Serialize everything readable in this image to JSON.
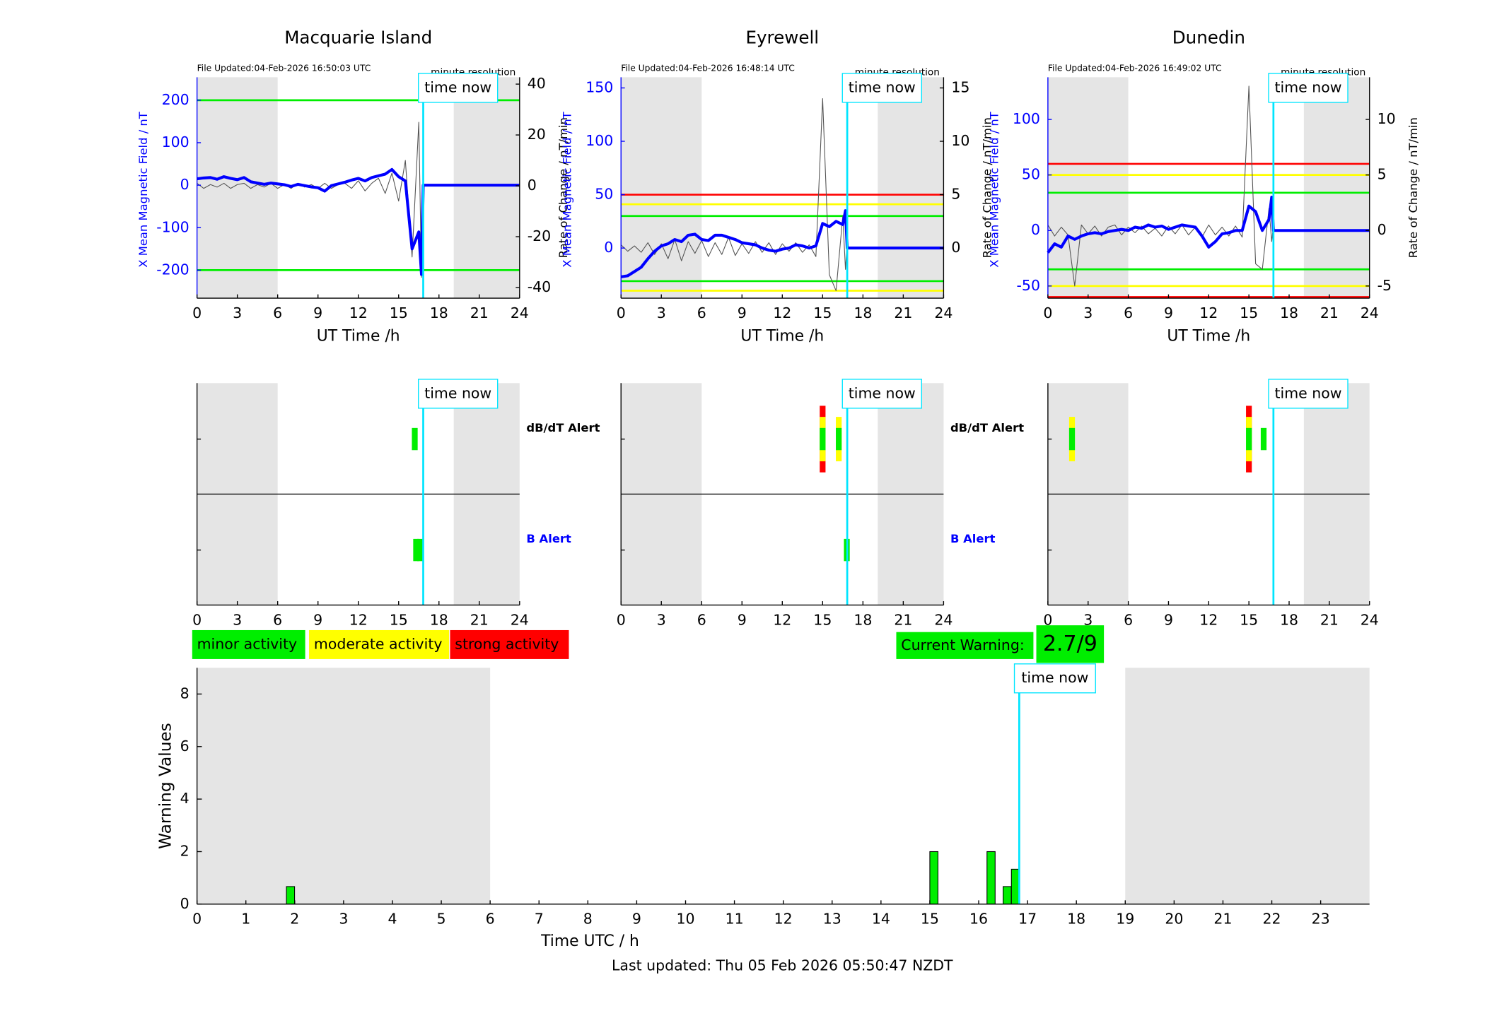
{
  "chart_data": [
    {
      "type": "mag",
      "title": "Macquarie Island",
      "file_updated": "File Updated:04-Feb-2026 16:50:03 UTC",
      "resolution": "minute resolution",
      "xlabel": "UT Time /h",
      "xlim": [
        0,
        24
      ],
      "xticks": [
        0,
        3,
        6,
        9,
        12,
        15,
        18,
        21,
        24
      ],
      "ylim": [
        -266,
        254
      ],
      "yticks": [
        -200,
        -100,
        0,
        100,
        200
      ],
      "y2lim": [
        -44.2,
        42.7
      ],
      "y2ticks": [
        -40,
        -20,
        0,
        20,
        40
      ],
      "shaded": [
        [
          0,
          6
        ],
        [
          19.1,
          24
        ]
      ],
      "time_now": 16.83,
      "time_now_label": "time now",
      "thresholds": [
        {
          "value": 200,
          "color": "#00ee00"
        },
        {
          "value": -200,
          "color": "#00ee00"
        }
      ],
      "x": [
        0,
        0.5,
        1,
        1.5,
        2,
        2.5,
        3,
        3.5,
        4,
        4.5,
        5,
        5.5,
        6,
        6.5,
        7,
        7.5,
        8,
        8.5,
        9,
        9.5,
        10,
        10.5,
        11,
        11.5,
        12,
        12.5,
        13,
        13.5,
        14,
        14.5,
        15,
        15.5,
        16,
        16.5,
        16.7,
        16.83,
        24
      ],
      "series": [
        {
          "name": "X Mean Magnetic Field / nT",
          "color": "#0000ff",
          "values": [
            15,
            17,
            18,
            14,
            20,
            16,
            13,
            18,
            8,
            5,
            2,
            5,
            3,
            1,
            -3,
            2,
            -1,
            -4,
            -6,
            -14,
            -1,
            3,
            7,
            12,
            16,
            10,
            18,
            22,
            26,
            37,
            20,
            10,
            -150,
            -110,
            -210,
            0,
            0
          ]
        },
        {
          "name": "Rate of Change / nT/min",
          "color": "#555555",
          "axis": "y2",
          "values": [
            1,
            -1,
            0.5,
            -0.5,
            1,
            -1,
            0.5,
            1,
            -1,
            0.5,
            -0.5,
            1,
            -1,
            0.5,
            -1,
            1,
            -0.5,
            0.5,
            -1,
            1,
            -1,
            0.5,
            1,
            -1,
            2,
            -2,
            1,
            3,
            -3,
            5,
            -6,
            10,
            -28,
            25,
            -36,
            6,
            null
          ]
        }
      ]
    },
    {
      "type": "mag",
      "title": "Eyrewell",
      "file_updated": "File Updated:04-Feb-2026 16:48:14 UTC",
      "resolution": "minute resolution",
      "xlabel": "UT Time /h",
      "xlim": [
        0,
        24
      ],
      "xticks": [
        0,
        3,
        6,
        9,
        12,
        15,
        18,
        21,
        24
      ],
      "ylim": [
        -47,
        160
      ],
      "yticks": [
        0,
        50,
        100,
        150
      ],
      "y2lim": [
        -4.7,
        16
      ],
      "y2ticks": [
        0,
        5,
        10,
        15
      ],
      "shaded": [
        [
          0,
          6
        ],
        [
          19.1,
          24
        ]
      ],
      "time_now": 16.83,
      "time_now_label": "time now",
      "thresholds": [
        {
          "value": 50,
          "color": "#ff0000"
        },
        {
          "value": 41,
          "color": "#ffff00"
        },
        {
          "value": 30,
          "color": "#00ee00"
        },
        {
          "value": -31,
          "color": "#00ee00"
        },
        {
          "value": -40,
          "color": "#ffff00"
        }
      ],
      "x": [
        0,
        0.5,
        1,
        1.5,
        2,
        2.5,
        3,
        3.5,
        4,
        4.5,
        5,
        5.5,
        6,
        6.5,
        7,
        7.5,
        8,
        8.5,
        9,
        9.5,
        10,
        10.5,
        11,
        11.5,
        12,
        12.5,
        13,
        13.5,
        14,
        14.5,
        15,
        15.5,
        16,
        16.5,
        16.7,
        16.83,
        24
      ],
      "series": [
        {
          "name": "X Mean Magnetic Field / nT",
          "color": "#0000ff",
          "values": [
            -27,
            -26,
            -22,
            -18,
            -10,
            -3,
            2,
            4,
            8,
            6,
            12,
            13,
            8,
            7,
            12,
            12,
            10,
            8,
            5,
            4,
            3,
            0,
            -2,
            -3,
            -1,
            0,
            3,
            2,
            0,
            2,
            23,
            20,
            25,
            22,
            35,
            0,
            0
          ]
        },
        {
          "name": "Rate of Change / nT/min",
          "color": "#555555",
          "axis": "y2",
          "values": [
            0.3,
            -0.3,
            0.2,
            -0.4,
            0.5,
            -0.6,
            0.4,
            -1,
            0.8,
            -1.2,
            0.6,
            -0.5,
            0.7,
            -0.8,
            0.5,
            -0.6,
            1,
            -0.7,
            0.4,
            -0.5,
            0.6,
            -0.4,
            0.5,
            -0.6,
            0.4,
            -0.3,
            0.5,
            -0.4,
            0.3,
            -0.8,
            14,
            -2.5,
            -4,
            3,
            -2,
            0.5,
            null
          ]
        }
      ]
    },
    {
      "type": "mag",
      "title": "Dunedin",
      "file_updated": "File Updated:04-Feb-2026 16:49:02 UTC",
      "resolution": "minute resolution",
      "xlabel": "UT Time /h",
      "xlim": [
        0,
        24
      ],
      "xticks": [
        0,
        3,
        6,
        9,
        12,
        15,
        18,
        21,
        24
      ],
      "ylim": [
        -61,
        138
      ],
      "yticks": [
        -50,
        0,
        50,
        100
      ],
      "y2lim": [
        -6.1,
        13.8
      ],
      "y2ticks": [
        -5,
        0,
        5,
        10
      ],
      "shaded": [
        [
          0,
          6
        ],
        [
          19.1,
          24
        ]
      ],
      "time_now": 16.83,
      "time_now_label": "time now",
      "thresholds": [
        {
          "value": 60,
          "color": "#ff0000"
        },
        {
          "value": 50,
          "color": "#ffff00"
        },
        {
          "value": 34,
          "color": "#00ee00"
        },
        {
          "value": -35,
          "color": "#00ee00"
        },
        {
          "value": -50,
          "color": "#ffff00"
        },
        {
          "value": -60,
          "color": "#ff0000"
        }
      ],
      "x": [
        0,
        0.5,
        1,
        1.5,
        2,
        2.5,
        3,
        3.5,
        4,
        4.5,
        5,
        5.5,
        6,
        6.5,
        7,
        7.5,
        8,
        8.5,
        9,
        9.5,
        10,
        10.5,
        11,
        11.5,
        12,
        12.5,
        13,
        13.5,
        14,
        14.5,
        15,
        15.5,
        16,
        16.5,
        16.7,
        16.83,
        24
      ],
      "series": [
        {
          "name": "X Mean Magnetic Field / nT",
          "color": "#0000ff",
          "values": [
            -20,
            -12,
            -15,
            -5,
            -8,
            -5,
            -3,
            -2,
            -3,
            -1,
            0,
            1,
            0,
            3,
            2,
            5,
            3,
            4,
            1,
            3,
            5,
            4,
            3,
            -5,
            -15,
            -10,
            -3,
            -2,
            0,
            0,
            22,
            17,
            0,
            10,
            30,
            0,
            0
          ]
        },
        {
          "name": "Rate of Change / nT/min",
          "color": "#555555",
          "axis": "y2",
          "values": [
            0.5,
            -0.5,
            0.3,
            -0.4,
            -5,
            0.5,
            -0.3,
            0.4,
            -0.5,
            0.3,
            0.5,
            -0.4,
            0.3,
            -0.2,
            0.4,
            -0.3,
            0.2,
            -0.5,
            0.4,
            -0.3,
            0.5,
            -0.4,
            0.3,
            -0.6,
            0.5,
            -0.4,
            0.3,
            -0.5,
            0.4,
            -0.6,
            13,
            -3,
            -3.5,
            2,
            -1,
            0.5,
            null
          ]
        }
      ]
    },
    {
      "type": "alert",
      "xlim": [
        0,
        24
      ],
      "xticks": [
        0,
        3,
        6,
        9,
        12,
        15,
        18,
        21,
        24
      ],
      "shaded": [
        [
          0,
          6
        ],
        [
          19.1,
          24
        ]
      ],
      "time_now": 16.83,
      "time_now_label": "time now",
      "level_colors": [
        "#00ee00",
        "#ffff00",
        "#ff0000"
      ],
      "dbdt_label": "dB/dT Alert",
      "b_label": "B Alert",
      "b_label_color": "#0000ff",
      "dbdt_alerts": {
        "x": [
          16.2
        ],
        "levels": [
          1
        ]
      },
      "b_alerts": {
        "x": [
          16.3,
          16.6
        ],
        "levels": [
          1,
          1
        ]
      }
    },
    {
      "type": "alert",
      "xlim": [
        0,
        24
      ],
      "xticks": [
        0,
        3,
        6,
        9,
        12,
        15,
        18,
        21,
        24
      ],
      "shaded": [
        [
          0,
          6
        ],
        [
          19.1,
          24
        ]
      ],
      "time_now": 16.83,
      "time_now_label": "time now",
      "level_colors": [
        "#00ee00",
        "#ffff00",
        "#ff0000"
      ],
      "dbdt_label": "dB/dT Alert",
      "b_label": "B Alert",
      "b_label_color": "#0000ff",
      "dbdt_alerts": {
        "x": [
          15.0,
          16.2
        ],
        "levels": [
          3,
          2
        ]
      },
      "b_alerts": {
        "x": [
          16.8
        ],
        "levels": [
          1
        ]
      }
    },
    {
      "type": "alert",
      "xlim": [
        0,
        24
      ],
      "xticks": [
        0,
        3,
        6,
        9,
        12,
        15,
        18,
        21,
        24
      ],
      "shaded": [
        [
          0,
          6
        ],
        [
          19.1,
          24
        ]
      ],
      "time_now": 16.83,
      "time_now_label": "time now",
      "level_colors": [
        "#00ee00",
        "#ffff00",
        "#ff0000"
      ],
      "dbdt_alerts": {
        "x": [
          1.8,
          15.0,
          16.1
        ],
        "levels": [
          2,
          3,
          1
        ]
      },
      "b_alerts": {
        "x": [],
        "levels": []
      }
    },
    {
      "type": "bar",
      "xlabel": "Time UTC / h",
      "ylabel": "Warning Values",
      "xlim": [
        0,
        24
      ],
      "xticks": [
        0,
        1,
        2,
        3,
        4,
        5,
        6,
        7,
        8,
        9,
        10,
        11,
        12,
        13,
        14,
        15,
        16,
        17,
        18,
        19,
        20,
        21,
        22,
        23
      ],
      "ylim": [
        0,
        9
      ],
      "yticks": [
        0,
        2,
        4,
        6,
        8
      ],
      "shaded": [
        [
          0,
          6
        ],
        [
          19,
          24
        ]
      ],
      "time_now": 16.83,
      "time_now_label": "time now",
      "color": "#00ee00",
      "x": [
        1.83,
        15.0,
        16.17,
        16.5,
        16.67
      ],
      "values": [
        0.67,
        2,
        2,
        0.67,
        1.33
      ],
      "activity_levels": [
        {
          "name": "minor activity",
          "color": "#00ee00"
        },
        {
          "name": "moderate activity",
          "color": "#ffff00"
        },
        {
          "name": "strong activity",
          "color": "#ff0000"
        }
      ],
      "current_warning_label": "Current Warning:",
      "current_warning": "2.7/9"
    }
  ],
  "footer": "Last updated: Thu 05 Feb 2026 05:50:47 NZDT"
}
